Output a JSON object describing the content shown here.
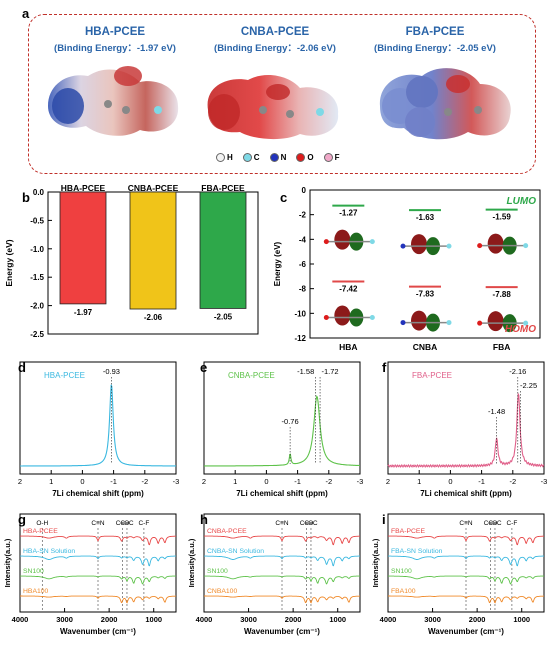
{
  "panel_labels": [
    "a",
    "b",
    "c",
    "d",
    "e",
    "f",
    "g",
    "h",
    "i"
  ],
  "panel_a": {
    "molecules": [
      {
        "name": "HBA-PCEE",
        "binding": "(Binding Energy：-1.97 eV)"
      },
      {
        "name": "CNBA-PCEE",
        "binding": "(Binding Energy：-2.06 eV)"
      },
      {
        "name": "FBA-PCEE",
        "binding": "(Binding Energy：-2.05 eV)"
      }
    ],
    "legend": [
      {
        "label": "H",
        "color": "#f4f4f4"
      },
      {
        "label": "C",
        "color": "#7fd9e6"
      },
      {
        "label": "N",
        "color": "#2233bb"
      },
      {
        "label": "O",
        "color": "#dd1c1c"
      },
      {
        "label": "F",
        "color": "#f0a8c8"
      }
    ]
  },
  "chart_data": [
    {
      "panel": "b",
      "type": "bar",
      "categories": [
        "HBA-PCEE",
        "CNBA-PCEE",
        "FBA-PCEE"
      ],
      "values": [
        -1.97,
        -2.06,
        -2.05
      ],
      "value_labels": [
        "-1.97",
        "-2.06",
        "-2.05"
      ],
      "colors": [
        "#ef4040",
        "#f0c419",
        "#2ea84a"
      ],
      "ylabel": "Energy (eV)",
      "ylim": [
        -2.5,
        0
      ],
      "yticks": [
        "0.0",
        "-0.5",
        "-1.0",
        "-1.5",
        "-2.0",
        "-2.5"
      ]
    },
    {
      "panel": "c",
      "type": "scatter",
      "categories": [
        "HBA",
        "CNBA",
        "FBA"
      ],
      "series": [
        {
          "name": "LUMO",
          "values": [
            -1.27,
            -1.63,
            -1.59
          ],
          "labels": [
            "-1.27",
            "-1.63",
            "-1.59"
          ]
        },
        {
          "name": "HOMO",
          "values": [
            -7.42,
            -7.83,
            -7.88
          ],
          "labels": [
            "-7.42",
            "-7.83",
            "-7.88"
          ]
        }
      ],
      "ylabel": "Energy (eV)",
      "ylim": [
        -12,
        0
      ],
      "yticks": [
        "0",
        "-2",
        "-4",
        "-6",
        "-8",
        "-10",
        "-12"
      ]
    },
    {
      "panel": "d",
      "type": "line",
      "legend": "HBA-PCEE",
      "xlabel": "7Li chemical shift (ppm)",
      "xlim": [
        2,
        -3
      ],
      "xticks": [
        "2",
        "1",
        "0",
        "-1",
        "-2",
        "-3"
      ],
      "peaks": [
        {
          "x": -0.93,
          "label": "-0.93"
        }
      ],
      "color": "#3ab8e0"
    },
    {
      "panel": "e",
      "type": "line",
      "legend": "CNBA-PCEE",
      "xlabel": "7Li chemical shift (ppm)",
      "xlim": [
        2,
        -3
      ],
      "xticks": [
        "2",
        "1",
        "0",
        "-1",
        "-2",
        "-3"
      ],
      "peaks": [
        {
          "x": -0.76,
          "label": "-0.76"
        },
        {
          "x": -1.58,
          "label": "-1.58"
        },
        {
          "x": -1.72,
          "label": "-1.72"
        }
      ],
      "color": "#5ec24a"
    },
    {
      "panel": "f",
      "type": "line",
      "legend": "FBA-PCEE",
      "xlabel": "7Li chemical shift (ppm)",
      "xlim": [
        2,
        -3
      ],
      "xticks": [
        "2",
        "1",
        "0",
        "-1",
        "-2",
        "-3"
      ],
      "peaks": [
        {
          "x": -1.48,
          "label": "-1.48"
        },
        {
          "x": -2.16,
          "label": "-2.16"
        },
        {
          "x": -2.25,
          "label": "-2.25"
        }
      ],
      "color": "#e0608a"
    },
    {
      "panel": "g",
      "type": "line",
      "xlabel": "Wavenumber (cm⁻¹)",
      "ylabel": "Intensity(a.u.)",
      "xlim": [
        4000,
        500
      ],
      "xticks": [
        "4000",
        "3000",
        "2000",
        "1000"
      ],
      "series": [
        {
          "name": "HBA-PCEE",
          "color": "#e84848"
        },
        {
          "name": "HBA-SN Solution",
          "color": "#3ab8e0"
        },
        {
          "name": "SN100",
          "color": "#5ec24a"
        },
        {
          "name": "HBA100",
          "color": "#f08a2a"
        }
      ],
      "annotations": [
        {
          "x": 3500,
          "label": "O-H"
        },
        {
          "x": 2250,
          "label": "C≡N"
        },
        {
          "x": 1700,
          "label": "C=O"
        },
        {
          "x": 1600,
          "label": "C=C"
        },
        {
          "x": 1220,
          "label": "C-F"
        }
      ]
    },
    {
      "panel": "h",
      "type": "line",
      "xlabel": "Wavenumber (cm⁻¹)",
      "ylabel": "Intensity(a.u.)",
      "xlim": [
        4000,
        500
      ],
      "xticks": [
        "4000",
        "3000",
        "2000",
        "1000"
      ],
      "series": [
        {
          "name": "CNBA-PCEE",
          "color": "#e84848"
        },
        {
          "name": "CNBA-SN Solution",
          "color": "#3ab8e0"
        },
        {
          "name": "SN100",
          "color": "#5ec24a"
        },
        {
          "name": "CNBA100",
          "color": "#f08a2a"
        }
      ],
      "annotations": [
        {
          "x": 2250,
          "label": "C≡N"
        },
        {
          "x": 1700,
          "label": "C=O"
        },
        {
          "x": 1600,
          "label": "C=C"
        }
      ]
    },
    {
      "panel": "i",
      "type": "line",
      "xlabel": "Wavenumber (cm⁻¹)",
      "ylabel": "Intensity(a.u.)",
      "xlim": [
        4000,
        500
      ],
      "xticks": [
        "4000",
        "3000",
        "2000",
        "1000"
      ],
      "series": [
        {
          "name": "FBA-PCEE",
          "color": "#e84848"
        },
        {
          "name": "FBA-SN Solution",
          "color": "#3ab8e0"
        },
        {
          "name": "SN100",
          "color": "#5ec24a"
        },
        {
          "name": "FBA100",
          "color": "#f08a2a"
        }
      ],
      "annotations": [
        {
          "x": 2250,
          "label": "C≡N"
        },
        {
          "x": 1700,
          "label": "C=O"
        },
        {
          "x": 1600,
          "label": "C=C"
        },
        {
          "x": 1220,
          "label": "C-F"
        }
      ]
    }
  ]
}
